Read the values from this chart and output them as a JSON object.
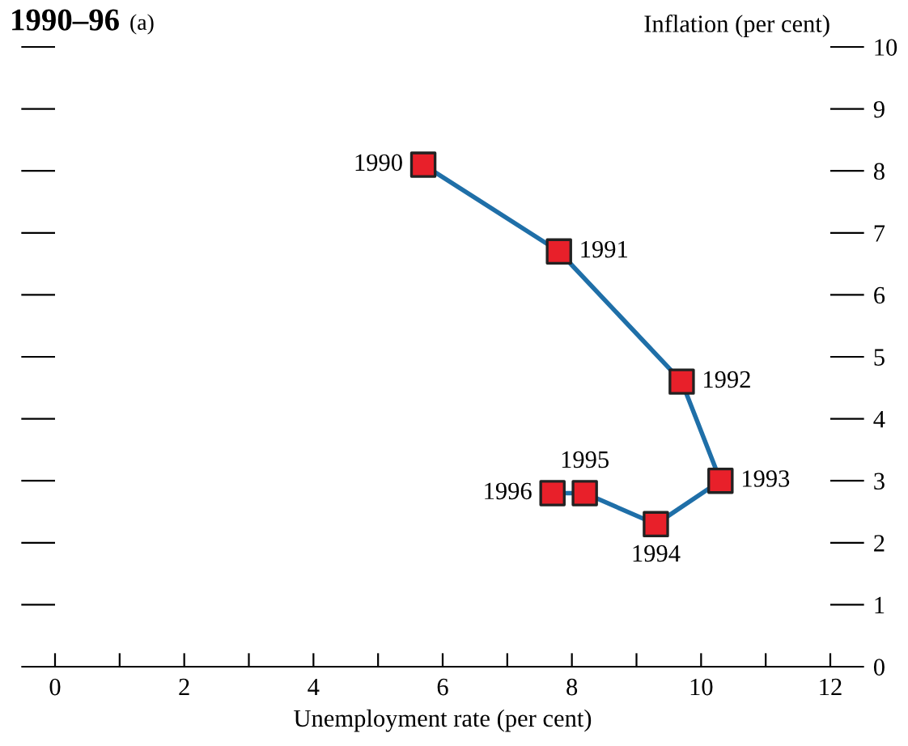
{
  "chart_data": {
    "type": "line",
    "title": "1990–96",
    "subtitle": "(a)",
    "xlabel": "Unemployment rate (per cent)",
    "ylabel": "Inflation (per cent)",
    "x": [
      5.7,
      7.8,
      9.7,
      10.3,
      9.3,
      8.2,
      7.7
    ],
    "series": [
      {
        "color": "#1f6fa8",
        "colors": [
          "#e8202a",
          "#e8202a",
          "#e8202a",
          "#e8202a",
          "#e8202a",
          "#e8202a",
          "#e8202a"
        ],
        "values": [
          8.1,
          6.7,
          4.6,
          3.0,
          2.3,
          2.8,
          2.8
        ]
      }
    ],
    "annotations": [
      {
        "text": "1990",
        "x": 5.7,
        "y": 8.1
      },
      {
        "text": "1991",
        "x": 7.8,
        "y": 6.7
      },
      {
        "text": "1992",
        "x": 9.7,
        "y": 4.6
      },
      {
        "text": "1993",
        "x": 10.3,
        "y": 3.0
      },
      {
        "text": "1994",
        "x": 9.3,
        "y": 2.3
      },
      {
        "text": "1995",
        "x": 8.2,
        "y": 2.8
      },
      {
        "text": "1996",
        "x": 7.7,
        "y": 2.8
      }
    ],
    "marker": "square",
    "line_style": "solid",
    "grid": false,
    "legend": false,
    "xlim": [
      0,
      12
    ],
    "ylim": [
      0,
      10
    ],
    "xticks": [
      0,
      {
        "value": 1,
        "label": null
      },
      2,
      {
        "value": 3,
        "label": null
      },
      4,
      {
        "value": 5,
        "label": null
      },
      6,
      {
        "value": 7,
        "label": null
      },
      8,
      {
        "value": 9,
        "label": null
      },
      10,
      {
        "value": 11,
        "label": null
      },
      12
    ],
    "yticks": [
      0,
      1,
      2,
      3,
      4,
      5,
      6,
      7,
      8,
      9,
      10
    ]
  }
}
